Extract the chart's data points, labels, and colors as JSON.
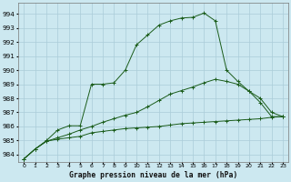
{
  "title": "Graphe pression niveau de la mer (hPa)",
  "background_color": "#cce8f0",
  "grid_color": "#aaccd8",
  "line_color": "#1a5c1a",
  "ylim": [
    983.5,
    994.8
  ],
  "yticks": [
    984,
    985,
    986,
    987,
    988,
    989,
    990,
    991,
    992,
    993,
    994
  ],
  "x_ticks": [
    0,
    1,
    2,
    3,
    4,
    5,
    6,
    7,
    8,
    9,
    10,
    11,
    12,
    13,
    14,
    15,
    16,
    17,
    18,
    19,
    20,
    21,
    22,
    23
  ],
  "line1_y": [
    983.7,
    984.4,
    984.95,
    985.1,
    985.2,
    985.3,
    985.55,
    985.65,
    985.75,
    985.85,
    985.9,
    985.95,
    986.0,
    986.1,
    986.2,
    986.25,
    986.3,
    986.35,
    986.4,
    986.45,
    986.5,
    986.55,
    986.65,
    986.7
  ],
  "line2_y": [
    983.7,
    984.4,
    984.95,
    985.2,
    985.45,
    985.75,
    986.0,
    986.3,
    986.55,
    986.8,
    987.0,
    987.4,
    987.85,
    988.3,
    988.55,
    988.8,
    989.1,
    989.35,
    989.2,
    989.0,
    988.5,
    988.0,
    987.0,
    986.7
  ],
  "line3_y": [
    983.7,
    984.4,
    985.0,
    985.75,
    986.05,
    986.05,
    989.0,
    989.0,
    989.1,
    990.0,
    991.8,
    992.5,
    993.2,
    993.5,
    993.7,
    993.75,
    994.05,
    993.5,
    990.0,
    989.2,
    988.5,
    987.7,
    986.7,
    986.7
  ]
}
